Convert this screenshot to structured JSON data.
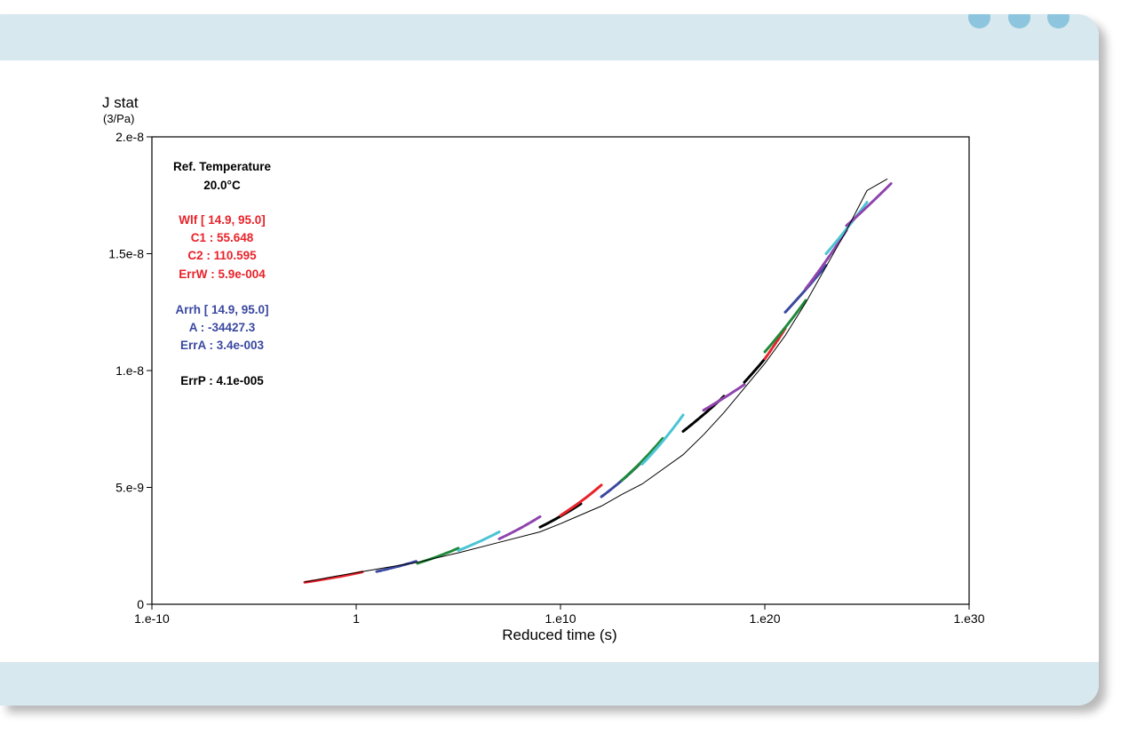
{
  "colors": {
    "frame": "#d7e8ef",
    "dot": "#8cc5dd",
    "red": "#e8232a",
    "blue": "#3a48a0",
    "black": "#000000"
  },
  "window_controls": [
    "dot-icon",
    "dot-icon",
    "dot-icon"
  ],
  "chart_data": {
    "type": "scatter",
    "ylabel": "J stat",
    "yunit": "(3/Pa)",
    "xlabel": "Reduced time (s)",
    "xscale": "log",
    "xlim": [
      1e-10,
      1e+30
    ],
    "ylim": [
      0,
      2e-08
    ],
    "grid": false,
    "xticks": [
      {
        "value": 1e-10,
        "label": "1.e-10"
      },
      {
        "value": 1,
        "label": "1"
      },
      {
        "value": 10000000000.0,
        "label": "1.e10"
      },
      {
        "value": 1e+20,
        "label": "1.e20"
      },
      {
        "value": 1e+30,
        "label": "1.e30"
      }
    ],
    "yticks": [
      {
        "value": 0,
        "label": "0"
      },
      {
        "value": 5e-09,
        "label": "5.e-9"
      },
      {
        "value": 1e-08,
        "label": "1.e-8"
      },
      {
        "value": 1.5e-08,
        "label": "1.5e-8"
      },
      {
        "value": 2e-08,
        "label": "2.e-8"
      }
    ],
    "master_curve": {
      "color": "#000000",
      "x": [
        0.003,
        0.1,
        10.0,
        1000.0,
        100000.0,
        10000000.0,
        1000000000.0,
        10000000000.0,
        1000000000000.0,
        10000000000000.0,
        100000000000000.0,
        1e+16,
        1e+17,
        1e+18,
        1e+20,
        1e+21,
        1e+22,
        1e+24,
        1e+25,
        1e+26
      ],
      "y": [
        9.5e-10,
        1.2e-09,
        1.5e-09,
        1.8e-09,
        2.2e-09,
        2.65e-09,
        3.1e-09,
        3.45e-09,
        4.2e-09,
        4.7e-09,
        5.15e-09,
        6.4e-09,
        7.25e-09,
        8.2e-09,
        1.03e-08,
        1.15e-08,
        1.29e-08,
        1.6e-08,
        1.77e-08,
        1.82e-08
      ]
    },
    "series": [
      {
        "color": "#e8232a",
        "x": [
          0.003,
          2.0
        ],
        "y": [
          9.4e-10,
          1.38e-09
        ]
      },
      {
        "color": "#3a48a0",
        "x": [
          10.0,
          1000.0
        ],
        "y": [
          1.4e-09,
          1.85e-09
        ]
      },
      {
        "color": "#1f8a3a",
        "x": [
          1000.0,
          100000.0
        ],
        "y": [
          1.75e-09,
          2.4e-09
        ]
      },
      {
        "color": "#4cc4d4",
        "x": [
          100000.0,
          10000000.0
        ],
        "y": [
          2.3e-09,
          3.1e-09
        ]
      },
      {
        "color": "#8e44ad",
        "x": [
          10000000.0,
          1000000000.0
        ],
        "y": [
          2.8e-09,
          3.75e-09
        ]
      },
      {
        "color": "#000000",
        "x": [
          1000000000.0,
          100000000000.0
        ],
        "y": [
          3.3e-09,
          4.3e-09
        ]
      },
      {
        "color": "#e8232a",
        "x": [
          10000000000.0,
          1000000000000.0
        ],
        "y": [
          3.8e-09,
          5.1e-09
        ]
      },
      {
        "color": "#3a48a0",
        "x": [
          1000000000000.0,
          100000000000000.0
        ],
        "y": [
          4.6e-09,
          6.1e-09
        ]
      },
      {
        "color": "#1f8a3a",
        "x": [
          10000000000000.0,
          1000000000000000.0
        ],
        "y": [
          5.3e-09,
          7.1e-09
        ]
      },
      {
        "color": "#4cc4d4",
        "x": [
          100000000000000.0,
          1e+16
        ],
        "y": [
          6e-09,
          8.1e-09
        ]
      },
      {
        "color": "#000000",
        "x": [
          1e+16,
          1e+18
        ],
        "y": [
          7.4e-09,
          8.9e-09
        ]
      },
      {
        "color": "#8e44ad",
        "x": [
          1e+17,
          1e+19
        ],
        "y": [
          8.3e-09,
          9.4e-09
        ]
      },
      {
        "color": "#000000",
        "x": [
          1e+19,
          1e+20
        ],
        "y": [
          9.5e-09,
          1.05e-08
        ]
      },
      {
        "color": "#e8232a",
        "x": [
          1e+20,
          1e+21
        ],
        "y": [
          1.05e-08,
          1.18e-08
        ]
      },
      {
        "color": "#1f8a3a",
        "x": [
          1e+20,
          1e+22
        ],
        "y": [
          1.08e-08,
          1.3e-08
        ]
      },
      {
        "color": "#3a48a0",
        "x": [
          1e+21,
          1e+23
        ],
        "y": [
          1.25e-08,
          1.45e-08
        ]
      },
      {
        "color": "#8e44ad",
        "x": [
          1e+22,
          1e+24
        ],
        "y": [
          1.35e-08,
          1.6e-08
        ]
      },
      {
        "color": "#4cc4d4",
        "x": [
          1e+23,
          1e+25
        ],
        "y": [
          1.5e-08,
          1.72e-08
        ]
      },
      {
        "color": "#8e44ad",
        "x": [
          1e+24,
          1.5e+26
        ],
        "y": [
          1.62e-08,
          1.8e-08
        ]
      }
    ],
    "annotations": [
      {
        "text": "Ref. Temperature",
        "color": "#000000"
      },
      {
        "text": "20.0°C",
        "color": "#000000"
      },
      {
        "text": "Wlf  [ 14.9, 95.0]",
        "color": "#e8232a"
      },
      {
        "text": "C1   : 55.648",
        "color": "#e8232a"
      },
      {
        "text": "C2   : 110.595",
        "color": "#e8232a"
      },
      {
        "text": "ErrW : 5.9e-004",
        "color": "#e8232a"
      },
      {
        "text": "Arrh [ 14.9, 95.0]",
        "color": "#3a48a0"
      },
      {
        "text": "A    : -34427.3",
        "color": "#3a48a0"
      },
      {
        "text": "ErrA : 3.4e-003",
        "color": "#3a48a0"
      },
      {
        "text": "ErrP : 4.1e-005",
        "color": "#000000"
      }
    ]
  }
}
